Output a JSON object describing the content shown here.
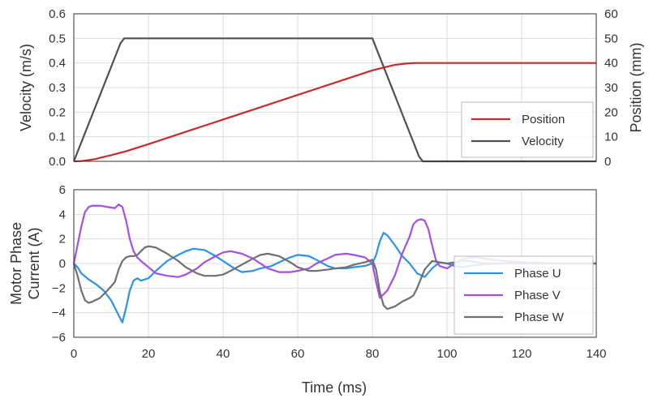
{
  "chart_data": [
    {
      "type": "line",
      "title": "",
      "xlim": [
        0,
        140
      ],
      "ylim": [
        0,
        0.6
      ],
      "y2lim": [
        0,
        60
      ],
      "x_ticks": [
        "0",
        "20",
        "40",
        "60",
        "80",
        "100",
        "120",
        "140"
      ],
      "y_ticks": [
        "0.0",
        "0.1",
        "0.2",
        "0.3",
        "0.4",
        "0.5",
        "0.6"
      ],
      "y2_ticks": [
        "0",
        "10",
        "20",
        "30",
        "40",
        "50",
        "60"
      ],
      "xlabel": "",
      "ylabel": "Velocity (m/s)",
      "y2label": "Position (mm)",
      "grid": true,
      "legend_position": "bottom-right",
      "series": [
        {
          "name": "Position",
          "axis": "right",
          "color": "#cc2a2a",
          "x": [
            0,
            2,
            4,
            6,
            8,
            10,
            12,
            14,
            20,
            30,
            40,
            50,
            60,
            70,
            80,
            84,
            86,
            88,
            90,
            92,
            94,
            140
          ],
          "y": [
            0,
            0.1,
            0.5,
            1,
            1.8,
            2.5,
            3.3,
            4.1,
            7,
            12,
            17,
            22,
            27,
            32,
            37,
            38.5,
            39.2,
            39.6,
            39.9,
            40,
            40,
            40
          ]
        },
        {
          "name": "Velocity",
          "axis": "left",
          "color": "#505050",
          "x": [
            0,
            12.5,
            13.5,
            80,
            92.5,
            93.5,
            140
          ],
          "y": [
            0,
            0.48,
            0.5,
            0.5,
            0.02,
            0,
            0
          ]
        }
      ]
    },
    {
      "type": "line",
      "title": "",
      "xlim": [
        0,
        140
      ],
      "ylim": [
        -6,
        6
      ],
      "x_ticks": [
        "0",
        "20",
        "40",
        "60",
        "80",
        "100",
        "120",
        "140"
      ],
      "y_ticks": [
        "−6",
        "−4",
        "−2",
        "0",
        "2",
        "4",
        "6"
      ],
      "xlabel": "Time (ms)",
      "ylabel": "Motor Phase Current (A)",
      "ylabel_lines": [
        "Motor Phase",
        "Current (A)"
      ],
      "grid": true,
      "legend_position": "bottom-right",
      "series": [
        {
          "name": "Phase U",
          "color": "#2d93e8",
          "x": [
            0,
            1,
            2,
            4,
            6,
            8,
            10,
            12,
            13,
            14,
            15,
            16,
            17,
            18,
            20,
            22,
            25,
            28,
            30,
            32,
            35,
            38,
            40,
            43,
            45,
            48,
            50,
            53,
            55,
            58,
            60,
            63,
            65,
            68,
            70,
            73,
            75,
            78,
            80,
            81,
            82,
            83,
            84,
            86,
            88,
            90,
            92,
            94,
            96,
            98,
            100,
            102,
            104,
            106,
            110,
            115,
            120,
            130,
            140
          ],
          "y": [
            0,
            -0.3,
            -0.8,
            -1.3,
            -1.7,
            -2.2,
            -3,
            -4.2,
            -4.8,
            -3.6,
            -2.2,
            -1.4,
            -1.2,
            -1.4,
            -1.2,
            -0.6,
            0.2,
            0.7,
            1,
            1.2,
            1.1,
            0.6,
            0.2,
            -0.4,
            -0.7,
            -0.6,
            -0.4,
            -0.2,
            0.1,
            0.5,
            0.7,
            0.6,
            0.3,
            -0.2,
            -0.4,
            -0.4,
            -0.3,
            -0.2,
            0,
            0.7,
            1.8,
            2.5,
            2.3,
            1.5,
            0.6,
            0,
            -0.8,
            -1.1,
            -0.4,
            0.1,
            0,
            -0.2,
            -0.3,
            -0.2,
            -0.05,
            0,
            0,
            0,
            0
          ]
        },
        {
          "name": "Phase V",
          "color": "#a54fe8",
          "x": [
            0,
            1,
            2,
            3,
            4,
            5,
            7,
            9,
            11,
            12,
            13,
            14,
            15,
            16,
            17,
            18,
            20,
            22,
            25,
            28,
            30,
            33,
            35,
            38,
            40,
            42,
            45,
            48,
            50,
            52,
            55,
            58,
            60,
            63,
            65,
            68,
            70,
            73,
            75,
            78,
            80,
            81,
            82,
            84,
            86,
            88,
            90,
            91,
            92,
            93,
            94,
            95,
            96,
            97,
            98,
            100,
            102,
            104,
            106,
            108,
            110,
            115,
            120,
            130,
            140
          ],
          "y": [
            0,
            1.5,
            3,
            4.2,
            4.6,
            4.7,
            4.7,
            4.6,
            4.5,
            4.8,
            4.6,
            3.5,
            2,
            1,
            0.5,
            0.2,
            -0.3,
            -0.8,
            -1,
            -1.1,
            -0.9,
            -0.4,
            0.1,
            0.6,
            0.9,
            1,
            0.8,
            0.4,
            0,
            -0.4,
            -0.7,
            -0.7,
            -0.6,
            -0.4,
            0,
            0.4,
            0.7,
            0.8,
            0.7,
            0.5,
            0,
            -1.5,
            -2.8,
            -2.2,
            -1,
            0.8,
            2.2,
            3.2,
            3.5,
            3.6,
            3.5,
            2.8,
            1.5,
            0.3,
            -0.2,
            -0.4,
            0,
            0.3,
            0.5,
            0.5,
            0.4,
            0.2,
            0.1,
            0,
            0
          ]
        },
        {
          "name": "Phase W",
          "color": "#707070",
          "x": [
            0,
            1,
            2,
            3,
            4,
            5,
            7,
            9,
            11,
            12,
            13,
            14,
            15,
            16,
            17,
            18,
            19,
            20,
            22,
            25,
            28,
            30,
            33,
            35,
            38,
            40,
            42,
            45,
            48,
            50,
            52,
            55,
            58,
            60,
            63,
            65,
            68,
            70,
            73,
            75,
            78,
            80,
            81,
            82,
            83,
            84,
            86,
            88,
            90,
            91,
            92,
            94,
            96,
            98,
            100,
            102,
            104,
            106,
            108,
            110,
            115,
            120,
            130,
            140
          ],
          "y": [
            0,
            -1,
            -2.2,
            -3,
            -3.2,
            -3.1,
            -2.8,
            -2.2,
            -1.5,
            -0.5,
            0.2,
            0.5,
            0.6,
            0.6,
            0.7,
            1,
            1.3,
            1.4,
            1.3,
            0.8,
            0.2,
            -0.3,
            -0.8,
            -1,
            -1,
            -0.9,
            -0.6,
            -0.1,
            0.4,
            0.7,
            0.8,
            0.6,
            0.1,
            -0.3,
            -0.6,
            -0.6,
            -0.5,
            -0.4,
            -0.3,
            -0.1,
            0.1,
            0.3,
            -0.5,
            -2.3,
            -3.4,
            -3.7,
            -3.5,
            -3.1,
            -2.8,
            -2.6,
            -2,
            -0.5,
            0.2,
            0.1,
            0,
            0.1,
            0.2,
            0.2,
            0.1,
            0,
            0,
            0,
            0,
            0
          ]
        }
      ]
    }
  ]
}
